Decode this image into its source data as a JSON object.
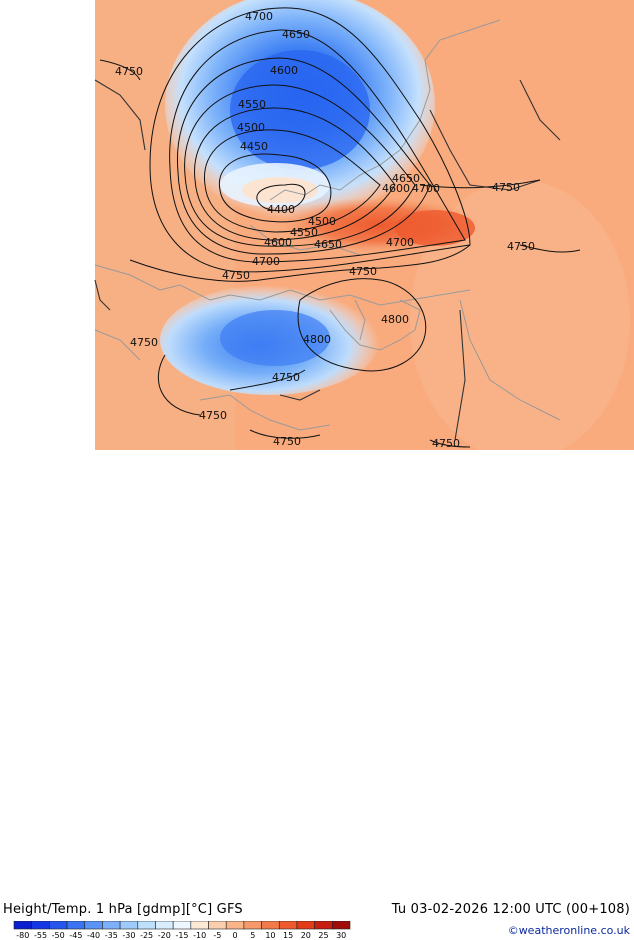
{
  "title": {
    "left": "Height/Temp. 1 hPa [gdmp][°C] GFS",
    "right": "Tu 03-02-2026 12:00 UTC (00+108)",
    "credit": "©weatheronline.co.uk"
  },
  "contour_labels": [
    "4700",
    "4650",
    "4750",
    "4600",
    "4550",
    "4500",
    "4450",
    "4400",
    "4650",
    "4600",
    "4700",
    "4750",
    "4500",
    "4550",
    "4600",
    "4650",
    "4700",
    "4750",
    "4700",
    "4750",
    "4750",
    "4750",
    "4800",
    "4800",
    "4750",
    "4750",
    "4750",
    "4750",
    "4750"
  ],
  "colorbar": {
    "labels": [
      "-80",
      "-55",
      "-50",
      "-45",
      "-40",
      "-35",
      "-30",
      "-25",
      "-20",
      "-15",
      "-10",
      "-5",
      "0",
      "5",
      "10",
      "15",
      "20",
      "25",
      "30"
    ],
    "colors": [
      "#0a1ecf",
      "#1438e6",
      "#2456ee",
      "#3a74f2",
      "#5a94f6",
      "#7cb0fa",
      "#9ecafc",
      "#bee0fd",
      "#d8edfe",
      "#eef6fe",
      "#fde8d6",
      "#fbcfae",
      "#f9b489",
      "#f6996a",
      "#f27b4c",
      "#ee5a2e",
      "#e33a1a",
      "#c81e10",
      "#a00c08"
    ]
  },
  "colors": {
    "background_warm": "#f9a878",
    "cold_core": "#2f6ef0",
    "land_border": "#9a9a9a",
    "contour": "#111111"
  }
}
